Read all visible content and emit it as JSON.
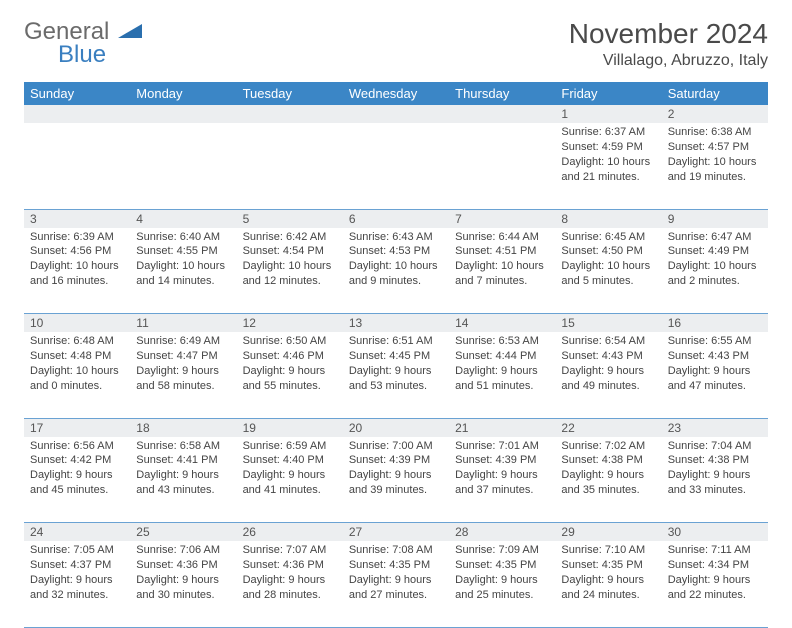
{
  "brand": {
    "part1": "General",
    "part2": "Blue"
  },
  "title": "November 2024",
  "location": "Villalago, Abruzzo, Italy",
  "colors": {
    "header_bg": "#3b86c6",
    "header_text": "#ffffff",
    "daynum_bg": "#eceef0",
    "border": "#6aa2d3",
    "logo_gray": "#6b6b6b",
    "logo_blue": "#3a7fc0"
  },
  "weekdays": [
    "Sunday",
    "Monday",
    "Tuesday",
    "Wednesday",
    "Thursday",
    "Friday",
    "Saturday"
  ],
  "weeks": [
    [
      null,
      null,
      null,
      null,
      null,
      {
        "n": "1",
        "sr": "Sunrise: 6:37 AM",
        "ss": "Sunset: 4:59 PM",
        "d1": "Daylight: 10 hours",
        "d2": "and 21 minutes."
      },
      {
        "n": "2",
        "sr": "Sunrise: 6:38 AM",
        "ss": "Sunset: 4:57 PM",
        "d1": "Daylight: 10 hours",
        "d2": "and 19 minutes."
      }
    ],
    [
      {
        "n": "3",
        "sr": "Sunrise: 6:39 AM",
        "ss": "Sunset: 4:56 PM",
        "d1": "Daylight: 10 hours",
        "d2": "and 16 minutes."
      },
      {
        "n": "4",
        "sr": "Sunrise: 6:40 AM",
        "ss": "Sunset: 4:55 PM",
        "d1": "Daylight: 10 hours",
        "d2": "and 14 minutes."
      },
      {
        "n": "5",
        "sr": "Sunrise: 6:42 AM",
        "ss": "Sunset: 4:54 PM",
        "d1": "Daylight: 10 hours",
        "d2": "and 12 minutes."
      },
      {
        "n": "6",
        "sr": "Sunrise: 6:43 AM",
        "ss": "Sunset: 4:53 PM",
        "d1": "Daylight: 10 hours",
        "d2": "and 9 minutes."
      },
      {
        "n": "7",
        "sr": "Sunrise: 6:44 AM",
        "ss": "Sunset: 4:51 PM",
        "d1": "Daylight: 10 hours",
        "d2": "and 7 minutes."
      },
      {
        "n": "8",
        "sr": "Sunrise: 6:45 AM",
        "ss": "Sunset: 4:50 PM",
        "d1": "Daylight: 10 hours",
        "d2": "and 5 minutes."
      },
      {
        "n": "9",
        "sr": "Sunrise: 6:47 AM",
        "ss": "Sunset: 4:49 PM",
        "d1": "Daylight: 10 hours",
        "d2": "and 2 minutes."
      }
    ],
    [
      {
        "n": "10",
        "sr": "Sunrise: 6:48 AM",
        "ss": "Sunset: 4:48 PM",
        "d1": "Daylight: 10 hours",
        "d2": "and 0 minutes."
      },
      {
        "n": "11",
        "sr": "Sunrise: 6:49 AM",
        "ss": "Sunset: 4:47 PM",
        "d1": "Daylight: 9 hours",
        "d2": "and 58 minutes."
      },
      {
        "n": "12",
        "sr": "Sunrise: 6:50 AM",
        "ss": "Sunset: 4:46 PM",
        "d1": "Daylight: 9 hours",
        "d2": "and 55 minutes."
      },
      {
        "n": "13",
        "sr": "Sunrise: 6:51 AM",
        "ss": "Sunset: 4:45 PM",
        "d1": "Daylight: 9 hours",
        "d2": "and 53 minutes."
      },
      {
        "n": "14",
        "sr": "Sunrise: 6:53 AM",
        "ss": "Sunset: 4:44 PM",
        "d1": "Daylight: 9 hours",
        "d2": "and 51 minutes."
      },
      {
        "n": "15",
        "sr": "Sunrise: 6:54 AM",
        "ss": "Sunset: 4:43 PM",
        "d1": "Daylight: 9 hours",
        "d2": "and 49 minutes."
      },
      {
        "n": "16",
        "sr": "Sunrise: 6:55 AM",
        "ss": "Sunset: 4:43 PM",
        "d1": "Daylight: 9 hours",
        "d2": "and 47 minutes."
      }
    ],
    [
      {
        "n": "17",
        "sr": "Sunrise: 6:56 AM",
        "ss": "Sunset: 4:42 PM",
        "d1": "Daylight: 9 hours",
        "d2": "and 45 minutes."
      },
      {
        "n": "18",
        "sr": "Sunrise: 6:58 AM",
        "ss": "Sunset: 4:41 PM",
        "d1": "Daylight: 9 hours",
        "d2": "and 43 minutes."
      },
      {
        "n": "19",
        "sr": "Sunrise: 6:59 AM",
        "ss": "Sunset: 4:40 PM",
        "d1": "Daylight: 9 hours",
        "d2": "and 41 minutes."
      },
      {
        "n": "20",
        "sr": "Sunrise: 7:00 AM",
        "ss": "Sunset: 4:39 PM",
        "d1": "Daylight: 9 hours",
        "d2": "and 39 minutes."
      },
      {
        "n": "21",
        "sr": "Sunrise: 7:01 AM",
        "ss": "Sunset: 4:39 PM",
        "d1": "Daylight: 9 hours",
        "d2": "and 37 minutes."
      },
      {
        "n": "22",
        "sr": "Sunrise: 7:02 AM",
        "ss": "Sunset: 4:38 PM",
        "d1": "Daylight: 9 hours",
        "d2": "and 35 minutes."
      },
      {
        "n": "23",
        "sr": "Sunrise: 7:04 AM",
        "ss": "Sunset: 4:38 PM",
        "d1": "Daylight: 9 hours",
        "d2": "and 33 minutes."
      }
    ],
    [
      {
        "n": "24",
        "sr": "Sunrise: 7:05 AM",
        "ss": "Sunset: 4:37 PM",
        "d1": "Daylight: 9 hours",
        "d2": "and 32 minutes."
      },
      {
        "n": "25",
        "sr": "Sunrise: 7:06 AM",
        "ss": "Sunset: 4:36 PM",
        "d1": "Daylight: 9 hours",
        "d2": "and 30 minutes."
      },
      {
        "n": "26",
        "sr": "Sunrise: 7:07 AM",
        "ss": "Sunset: 4:36 PM",
        "d1": "Daylight: 9 hours",
        "d2": "and 28 minutes."
      },
      {
        "n": "27",
        "sr": "Sunrise: 7:08 AM",
        "ss": "Sunset: 4:35 PM",
        "d1": "Daylight: 9 hours",
        "d2": "and 27 minutes."
      },
      {
        "n": "28",
        "sr": "Sunrise: 7:09 AM",
        "ss": "Sunset: 4:35 PM",
        "d1": "Daylight: 9 hours",
        "d2": "and 25 minutes."
      },
      {
        "n": "29",
        "sr": "Sunrise: 7:10 AM",
        "ss": "Sunset: 4:35 PM",
        "d1": "Daylight: 9 hours",
        "d2": "and 24 minutes."
      },
      {
        "n": "30",
        "sr": "Sunrise: 7:11 AM",
        "ss": "Sunset: 4:34 PM",
        "d1": "Daylight: 9 hours",
        "d2": "and 22 minutes."
      }
    ]
  ]
}
